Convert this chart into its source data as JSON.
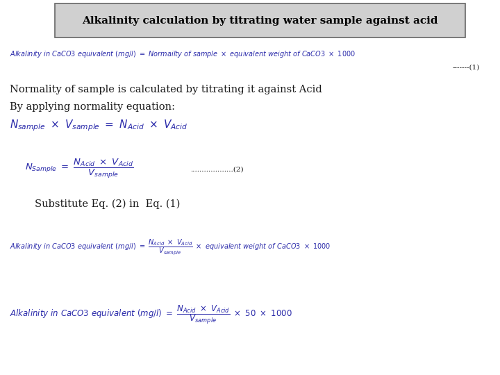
{
  "background_color": "#ffffff",
  "title_text": "Alkalinity calculation by titrating water sample against acid",
  "text_color_dark": "#1a1a1a",
  "text_color_blue": "#2a2aaa",
  "eq1_label": "-------(1)",
  "line1": "Normality of sample is calculated by titrating it against Acid",
  "line2": "By applying normality equation:",
  "substitute_text": "Substitute Eq. (2) in  Eq. (1)"
}
